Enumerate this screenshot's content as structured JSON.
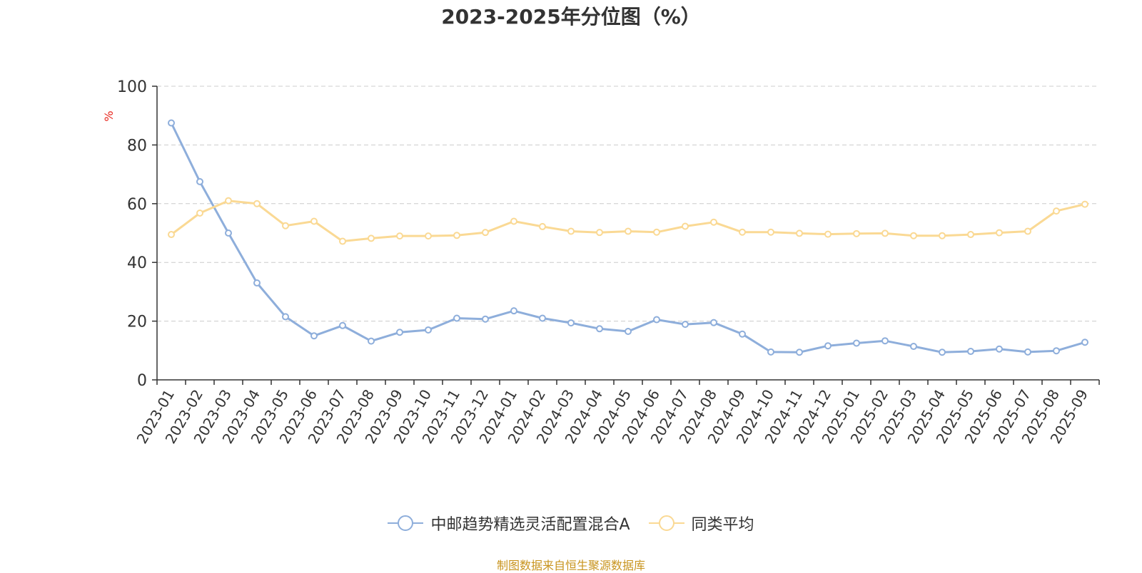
{
  "title": "2023-2025年分位图（%）",
  "source": "制图数据来自恒生聚源数据库",
  "colors": {
    "series_fund": "#8eaedb",
    "series_avg": "#fad994",
    "source_text": "#c8941e",
    "ylabel": "#e8261d",
    "grid": "#cccccc",
    "axis": "#333333"
  },
  "chart_data": {
    "type": "line",
    "title": "2023-2025年分位图（%）",
    "xlabel": "",
    "ylabel": "%",
    "ylim": [
      0,
      100
    ],
    "yticks": [
      0,
      20,
      40,
      60,
      80,
      100
    ],
    "grid": "horizontal dashed",
    "legend_position": "bottom",
    "categories": [
      "2023-01",
      "2023-02",
      "2023-03",
      "2023-04",
      "2023-05",
      "2023-06",
      "2023-07",
      "2023-08",
      "2023-09",
      "2023-10",
      "2023-11",
      "2023-12",
      "2024-01",
      "2024-02",
      "2024-03",
      "2024-04",
      "2024-05",
      "2024-06",
      "2024-07",
      "2024-08",
      "2024-09",
      "2024-10",
      "2024-11",
      "2024-12",
      "2025-01",
      "2025-02",
      "2025-03",
      "2025-04",
      "2025-05",
      "2025-06",
      "2025-07",
      "2025-08",
      "2025-09"
    ],
    "series": [
      {
        "name": "中邮趋势精选灵活配置混合A",
        "color": "#8eaedb",
        "values": [
          87.5,
          67.5,
          50.0,
          33.0,
          21.5,
          15.0,
          18.5,
          13.2,
          16.2,
          17.0,
          21.0,
          20.7,
          23.5,
          21.0,
          19.4,
          17.4,
          16.5,
          20.5,
          18.9,
          19.5,
          15.6,
          9.5,
          9.4,
          11.6,
          12.5,
          13.3,
          11.4,
          9.4,
          9.7,
          10.5,
          9.5,
          9.9,
          12.8
        ]
      },
      {
        "name": "同类平均",
        "color": "#fad994",
        "values": [
          49.5,
          56.8,
          61.0,
          60.0,
          52.5,
          54.0,
          47.2,
          48.2,
          49.0,
          49.0,
          49.2,
          50.2,
          54.0,
          52.2,
          50.6,
          50.2,
          50.6,
          50.3,
          52.3,
          53.7,
          50.3,
          50.3,
          49.9,
          49.6,
          49.8,
          49.9,
          49.1,
          49.1,
          49.5,
          50.1,
          50.6,
          57.5,
          59.8
        ]
      }
    ]
  }
}
